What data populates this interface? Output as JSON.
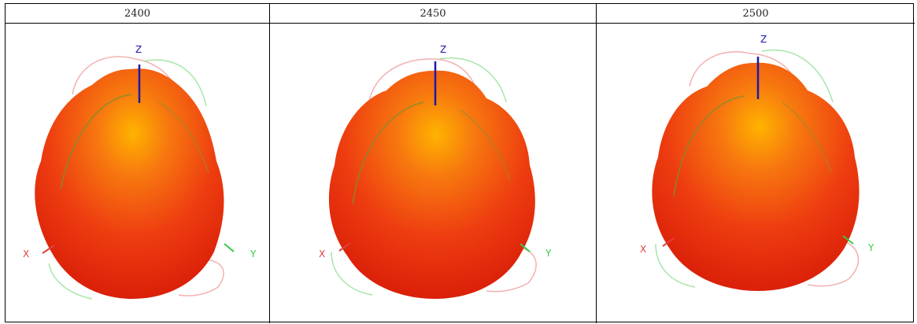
{
  "table": {
    "headers": [
      "2400",
      "2450",
      "2500"
    ]
  },
  "plots": [
    {
      "frequency": "2400",
      "axes": {
        "z": "Z",
        "x": "X",
        "y": "Y"
      }
    },
    {
      "frequency": "2450",
      "axes": {
        "z": "Z",
        "x": "X",
        "y": "Y"
      }
    },
    {
      "frequency": "2500",
      "axes": {
        "z": "Z",
        "x": "X",
        "y": "Y"
      }
    }
  ],
  "colors": {
    "pattern_outer": "#e42a0c",
    "pattern_mid": "#f2560f",
    "pattern_highlight": "#ffb000",
    "z_axis": "#1a1aa8",
    "x_axis": "#e04040",
    "y_axis": "#33cc44",
    "cut_red": "#f3b0b0",
    "cut_green": "#a8e6a8"
  }
}
